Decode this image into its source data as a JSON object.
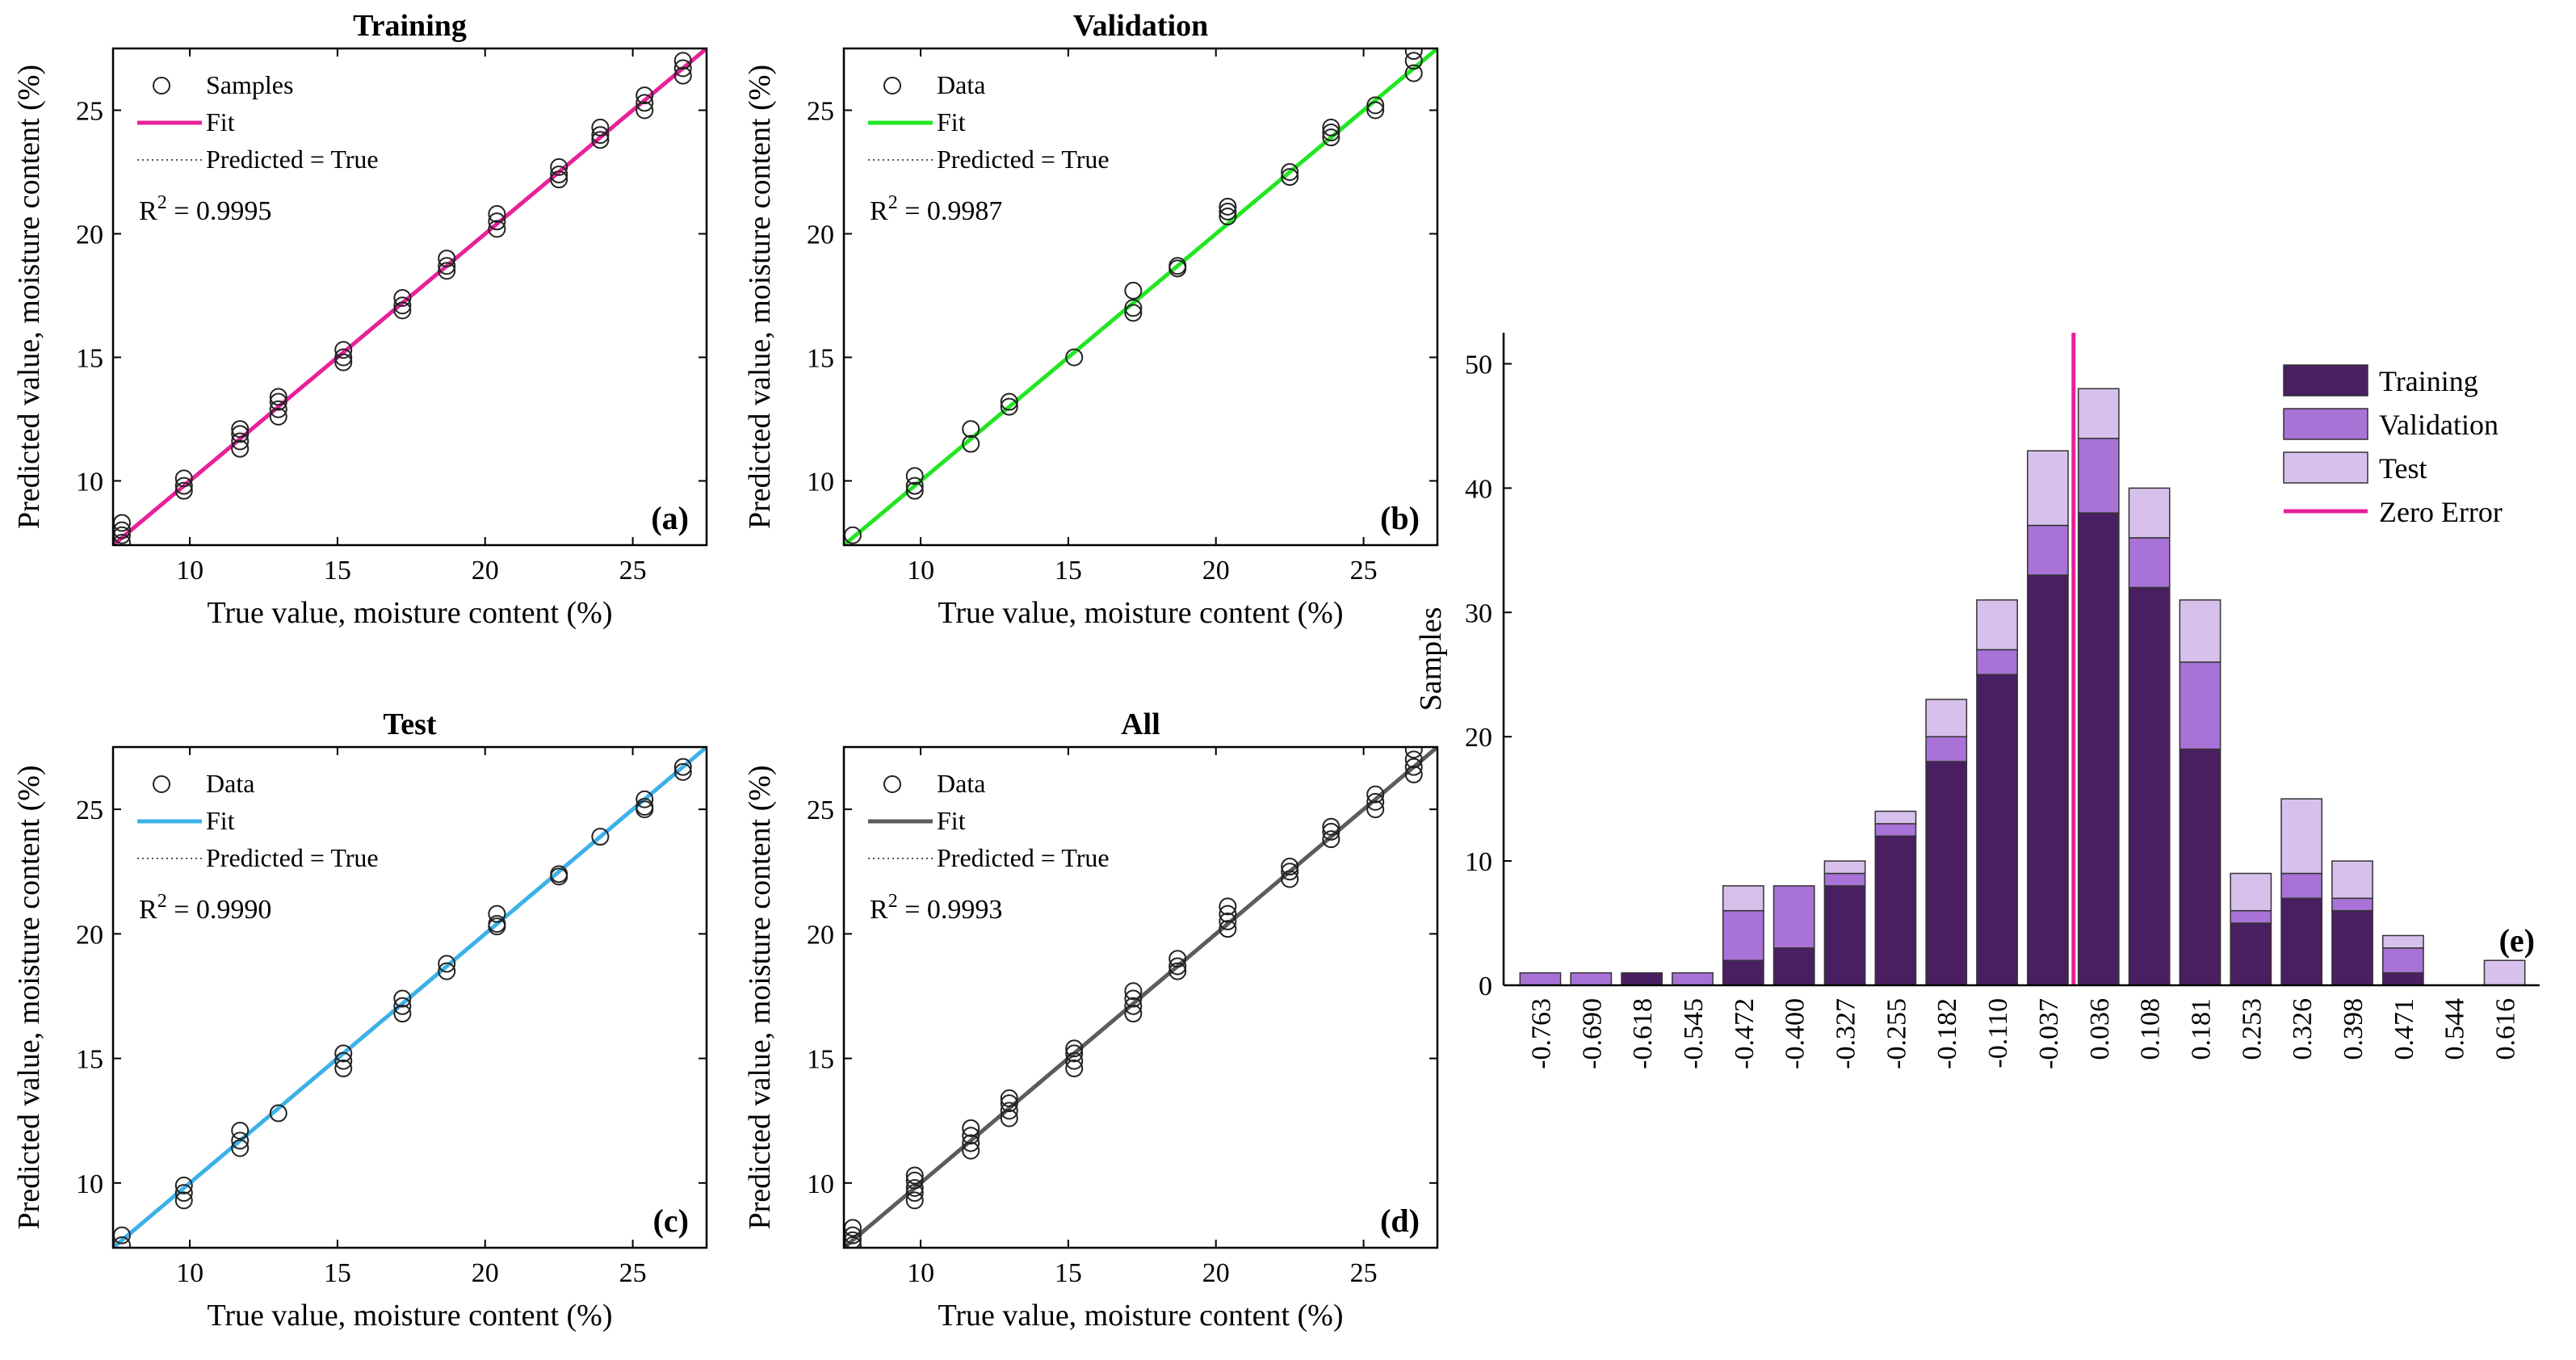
{
  "chart_data": [
    {
      "type": "scatter",
      "panel": "(a)",
      "title": "Training",
      "xlabel": "True value, moisture content (%)",
      "ylabel": "Predicted value, moisture content (%)",
      "xlim": [
        7.4,
        27.5
      ],
      "ylim": [
        7.4,
        27.5
      ],
      "xticks": [
        10,
        15,
        20,
        25
      ],
      "yticks": [
        10,
        15,
        20,
        25
      ],
      "legend": [
        "Samples",
        "Fit",
        "Predicted = True"
      ],
      "r2_prefix": "R",
      "r2_text": " = 0.9995",
      "r2": 0.9995,
      "fit_color": "#e8209a",
      "fit": [
        [
          7.4,
          7.4
        ],
        [
          27.5,
          27.5
        ]
      ],
      "points": [
        [
          7.7,
          7.5
        ],
        [
          7.7,
          7.8
        ],
        [
          7.7,
          8.0
        ],
        [
          7.7,
          8.3
        ],
        [
          9.8,
          9.6
        ],
        [
          9.8,
          9.8
        ],
        [
          9.8,
          10.1
        ],
        [
          11.7,
          11.3
        ],
        [
          11.7,
          11.6
        ],
        [
          11.7,
          11.9
        ],
        [
          11.7,
          12.1
        ],
        [
          13.0,
          12.6
        ],
        [
          13.0,
          12.9
        ],
        [
          13.0,
          13.2
        ],
        [
          13.0,
          13.4
        ],
        [
          15.2,
          14.8
        ],
        [
          15.2,
          15.0
        ],
        [
          15.2,
          15.3
        ],
        [
          17.2,
          16.9
        ],
        [
          17.2,
          17.1
        ],
        [
          17.2,
          17.4
        ],
        [
          18.7,
          18.5
        ],
        [
          18.7,
          18.7
        ],
        [
          18.7,
          19.0
        ],
        [
          20.4,
          20.2
        ],
        [
          20.4,
          20.5
        ],
        [
          20.4,
          20.8
        ],
        [
          22.5,
          22.2
        ],
        [
          22.5,
          22.4
        ],
        [
          22.5,
          22.7
        ],
        [
          23.9,
          23.8
        ],
        [
          23.9,
          24.0
        ],
        [
          23.9,
          24.3
        ],
        [
          25.4,
          25.0
        ],
        [
          25.4,
          25.3
        ],
        [
          25.4,
          25.6
        ],
        [
          26.7,
          26.4
        ],
        [
          26.7,
          26.7
        ],
        [
          26.7,
          27.0
        ]
      ]
    },
    {
      "type": "scatter",
      "panel": "(b)",
      "title": "Validation",
      "xlabel": "True value, moisture content (%)",
      "ylabel": "Predicted value, moisture content (%)",
      "xlim": [
        7.4,
        27.5
      ],
      "ylim": [
        7.4,
        27.5
      ],
      "xticks": [
        10,
        15,
        20,
        25
      ],
      "yticks": [
        10,
        15,
        20,
        25
      ],
      "legend": [
        "Data",
        "Fit",
        "Predicted = True"
      ],
      "r2_prefix": "R",
      "r2_text": " = 0.9987",
      "r2": 0.9987,
      "fit_color": "#22e622",
      "fit": [
        [
          7.4,
          7.4
        ],
        [
          27.5,
          27.5
        ]
      ],
      "points": [
        [
          7.7,
          7.8
        ],
        [
          9.8,
          9.6
        ],
        [
          9.8,
          9.8
        ],
        [
          9.8,
          10.2
        ],
        [
          11.7,
          11.5
        ],
        [
          11.7,
          12.1
        ],
        [
          13.0,
          13.0
        ],
        [
          13.0,
          13.2
        ],
        [
          15.2,
          15.0
        ],
        [
          17.2,
          16.8
        ],
        [
          17.2,
          17.0
        ],
        [
          17.2,
          17.7
        ],
        [
          18.7,
          18.6
        ],
        [
          18.7,
          18.7
        ],
        [
          20.4,
          20.7
        ],
        [
          20.4,
          20.9
        ],
        [
          20.4,
          21.1
        ],
        [
          22.5,
          22.3
        ],
        [
          22.5,
          22.5
        ],
        [
          23.9,
          23.9
        ],
        [
          23.9,
          24.1
        ],
        [
          23.9,
          24.3
        ],
        [
          25.4,
          25.0
        ],
        [
          25.4,
          25.2
        ],
        [
          26.7,
          26.5
        ],
        [
          26.7,
          27.0
        ],
        [
          26.7,
          27.4
        ]
      ]
    },
    {
      "type": "scatter",
      "panel": "(c)",
      "title": "Test",
      "xlabel": "True value, moisture content (%)",
      "ylabel": "Predicted value, moisture content (%)",
      "xlim": [
        7.4,
        27.5
      ],
      "ylim": [
        7.4,
        27.5
      ],
      "xticks": [
        10,
        15,
        20,
        25
      ],
      "yticks": [
        10,
        15,
        20,
        25
      ],
      "legend": [
        "Data",
        "Fit",
        "Predicted = True"
      ],
      "r2_prefix": "R",
      "r2_text": " = 0.9990",
      "r2": 0.999,
      "fit_color": "#3cb1e8",
      "fit": [
        [
          7.4,
          7.4
        ],
        [
          27.5,
          27.5
        ]
      ],
      "points": [
        [
          7.7,
          7.5
        ],
        [
          7.7,
          7.9
        ],
        [
          9.8,
          9.3
        ],
        [
          9.8,
          9.6
        ],
        [
          9.8,
          9.9
        ],
        [
          11.7,
          11.4
        ],
        [
          11.7,
          11.7
        ],
        [
          11.7,
          12.1
        ],
        [
          13.0,
          12.8
        ],
        [
          15.2,
          14.6
        ],
        [
          15.2,
          14.9
        ],
        [
          15.2,
          15.2
        ],
        [
          17.2,
          16.8
        ],
        [
          17.2,
          17.1
        ],
        [
          17.2,
          17.4
        ],
        [
          18.7,
          18.5
        ],
        [
          18.7,
          18.8
        ],
        [
          20.4,
          20.3
        ],
        [
          20.4,
          20.4
        ],
        [
          20.4,
          20.8
        ],
        [
          22.5,
          22.3
        ],
        [
          22.5,
          22.4
        ],
        [
          23.9,
          23.9
        ],
        [
          25.4,
          25.0
        ],
        [
          25.4,
          25.1
        ],
        [
          25.4,
          25.4
        ],
        [
          26.7,
          26.5
        ],
        [
          26.7,
          26.7
        ]
      ]
    },
    {
      "type": "scatter",
      "panel": "(d)",
      "title": "All",
      "xlabel": "True value, moisture content (%)",
      "ylabel": "Predicted value, moisture content (%)",
      "xlim": [
        7.4,
        27.5
      ],
      "ylim": [
        7.4,
        27.5
      ],
      "xticks": [
        10,
        15,
        20,
        25
      ],
      "yticks": [
        10,
        15,
        20,
        25
      ],
      "legend": [
        "Data",
        "Fit",
        "Predicted = True"
      ],
      "r2_prefix": "R",
      "r2_text": " = 0.9993",
      "r2": 0.9993,
      "fit_color": "#5c5c5c",
      "fit": [
        [
          7.4,
          7.4
        ],
        [
          27.5,
          27.5
        ]
      ],
      "points": [
        [
          7.7,
          7.5
        ],
        [
          7.7,
          7.7
        ],
        [
          7.7,
          7.9
        ],
        [
          7.7,
          8.2
        ],
        [
          9.8,
          9.3
        ],
        [
          9.8,
          9.6
        ],
        [
          9.8,
          9.8
        ],
        [
          9.8,
          10.1
        ],
        [
          9.8,
          10.3
        ],
        [
          11.7,
          11.3
        ],
        [
          11.7,
          11.6
        ],
        [
          11.7,
          11.9
        ],
        [
          11.7,
          12.2
        ],
        [
          13.0,
          12.6
        ],
        [
          13.0,
          12.9
        ],
        [
          13.0,
          13.2
        ],
        [
          13.0,
          13.4
        ],
        [
          15.2,
          14.6
        ],
        [
          15.2,
          14.9
        ],
        [
          15.2,
          15.2
        ],
        [
          15.2,
          15.4
        ],
        [
          17.2,
          16.8
        ],
        [
          17.2,
          17.1
        ],
        [
          17.2,
          17.4
        ],
        [
          17.2,
          17.7
        ],
        [
          18.7,
          18.5
        ],
        [
          18.7,
          18.7
        ],
        [
          18.7,
          19.0
        ],
        [
          20.4,
          20.2
        ],
        [
          20.4,
          20.5
        ],
        [
          20.4,
          20.8
        ],
        [
          20.4,
          21.1
        ],
        [
          22.5,
          22.2
        ],
        [
          22.5,
          22.5
        ],
        [
          22.5,
          22.7
        ],
        [
          23.9,
          23.8
        ],
        [
          23.9,
          24.1
        ],
        [
          23.9,
          24.3
        ],
        [
          25.4,
          25.0
        ],
        [
          25.4,
          25.3
        ],
        [
          25.4,
          25.6
        ],
        [
          26.7,
          26.4
        ],
        [
          26.7,
          26.7
        ],
        [
          26.7,
          27.0
        ],
        [
          26.7,
          27.4
        ]
      ]
    },
    {
      "type": "bar",
      "stacked": true,
      "panel": "(e)",
      "title": "",
      "xlabel": "",
      "ylabel": "Samples",
      "ylim": [
        0,
        52.5
      ],
      "yticks": [
        0,
        10,
        20,
        30,
        40,
        50
      ],
      "categories": [
        "-0.763",
        "-0.690",
        "-0.618",
        "-0.545",
        "-0.472",
        "-0.400",
        "-0.327",
        "-0.255",
        "-0.182",
        "-0.110",
        "-0.037",
        "0.036",
        "0.108",
        "0.181",
        "0.253",
        "0.326",
        "0.398",
        "0.471",
        "0.544",
        "0.616"
      ],
      "series": [
        {
          "name": "Training",
          "color": "#4a1f61",
          "values": [
            0,
            0,
            1,
            0,
            2,
            3,
            8,
            12,
            18,
            25,
            33,
            38,
            32,
            19,
            5,
            7,
            6,
            1,
            0,
            0
          ]
        },
        {
          "name": "Validation",
          "color": "#a872d6",
          "values": [
            1,
            1,
            0,
            1,
            4,
            5,
            1,
            1,
            2,
            2,
            4,
            6,
            4,
            7,
            1,
            2,
            1,
            2,
            0,
            0
          ]
        },
        {
          "name": "Test",
          "color": "#d7c0ec",
          "values": [
            0,
            0,
            0,
            0,
            2,
            0,
            1,
            1,
            3,
            4,
            6,
            4,
            4,
            5,
            3,
            6,
            3,
            1,
            0,
            2
          ]
        }
      ],
      "zero_error_label": "Zero Error",
      "zero_error_color": "#e8209a",
      "zero_error_x": 0
    }
  ]
}
